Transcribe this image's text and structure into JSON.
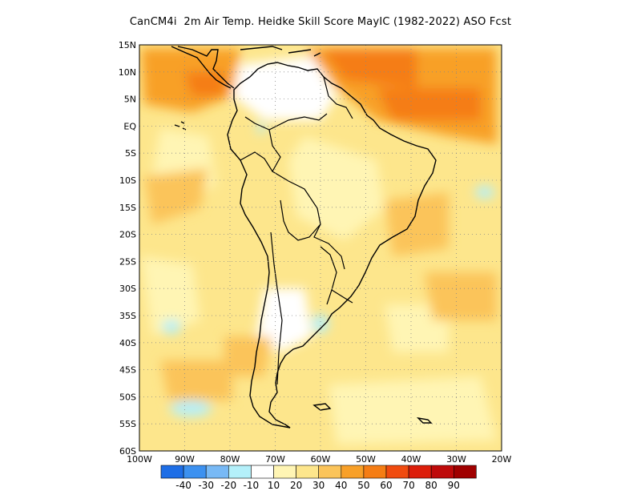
{
  "title": "CanCM4i  2m Air Temp. Heidke Skill Score MayIC (1982-2022) ASO Fcst",
  "map": {
    "lon_range": [
      -100,
      -20
    ],
    "lat_range": [
      -60,
      15
    ],
    "lat_labels": [
      "15N",
      "10N",
      "5N",
      "EQ",
      "5S",
      "10S",
      "15S",
      "20S",
      "25S",
      "30S",
      "35S",
      "40S",
      "45S",
      "50S",
      "55S",
      "60S"
    ],
    "lon_labels": [
      "100W",
      "90W",
      "80W",
      "70W",
      "60W",
      "50W",
      "40W",
      "30W",
      "20W"
    ],
    "gridlines": "dotted"
  },
  "colorbar": {
    "colors": [
      "#1e6ee6",
      "#3c91f0",
      "#78b9f5",
      "#b4f0fa",
      "#ffffff",
      "#fff5b4",
      "#fde68c",
      "#fbc45a",
      "#f8a028",
      "#f57d14",
      "#f04b0f",
      "#dc1e0a",
      "#be0a0a",
      "#a00000"
    ],
    "labels": [
      "-40",
      "-30",
      "-20",
      "-10",
      "10",
      "20",
      "30",
      "40",
      "50",
      "60",
      "70",
      "80",
      "90"
    ]
  },
  "regions": {
    "main_pattern": "Positive skill (10-60) across most of domain; strongest (50-70) over Caribbean, northern South America and tropical Atlantic near 5N-10N",
    "negative_spots": "Small areas of -10 to -20 near 38S 95W, 40S 60W, 53S 75W"
  }
}
